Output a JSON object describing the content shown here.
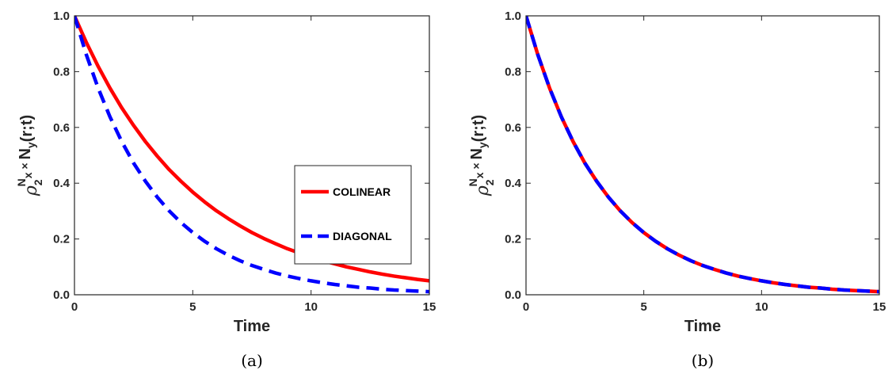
{
  "colors": {
    "colinear": "#ff0000",
    "diagonal": "#0000ff"
  },
  "chart_data": [
    {
      "type": "line",
      "caption": "(a)",
      "xlabel": "Time",
      "ylabel": {
        "main": "ρ",
        "sub": "2",
        "sup": "N",
        "sub2": "x",
        "times": "×",
        "rest": "N",
        "rest_sub": "y",
        "tail": "(r;t)"
      },
      "xlim": [
        0,
        15
      ],
      "ylim": [
        0,
        1
      ],
      "xticks": [
        "0",
        "5",
        "10",
        "15"
      ],
      "yticks": [
        "0.0",
        "0.2",
        "0.4",
        "0.6",
        "0.8",
        "1.0"
      ],
      "legend": {
        "position": "center-right"
      },
      "series": [
        {
          "name": "COLINEAR",
          "style": "solid",
          "color": "#ff0000",
          "x": [
            0,
            0.5,
            1,
            1.5,
            2,
            2.5,
            3,
            3.5,
            4,
            4.5,
            5,
            5.5,
            6,
            6.5,
            7,
            7.5,
            8,
            8.5,
            9,
            9.5,
            10,
            10.5,
            11,
            11.5,
            12,
            12.5,
            13,
            13.5,
            14,
            14.5,
            15
          ],
          "y": [
            1.0,
            0.905,
            0.819,
            0.741,
            0.67,
            0.607,
            0.549,
            0.497,
            0.449,
            0.407,
            0.368,
            0.333,
            0.301,
            0.273,
            0.247,
            0.223,
            0.202,
            0.183,
            0.165,
            0.15,
            0.135,
            0.122,
            0.111,
            0.1,
            0.091,
            0.082,
            0.074,
            0.067,
            0.061,
            0.055,
            0.05
          ]
        },
        {
          "name": "DIAGONAL",
          "style": "dashed",
          "color": "#0000ff",
          "x": [
            0,
            0.5,
            1,
            1.5,
            2,
            2.5,
            3,
            3.5,
            4,
            4.5,
            5,
            5.5,
            6,
            6.5,
            7,
            7.5,
            8,
            8.5,
            9,
            9.5,
            10,
            10.5,
            11,
            11.5,
            12,
            12.5,
            13,
            13.5,
            14,
            14.5,
            15
          ],
          "y": [
            1.0,
            0.861,
            0.741,
            0.638,
            0.549,
            0.472,
            0.407,
            0.35,
            0.301,
            0.259,
            0.223,
            0.192,
            0.165,
            0.142,
            0.122,
            0.105,
            0.091,
            0.078,
            0.067,
            0.058,
            0.05,
            0.043,
            0.037,
            0.032,
            0.027,
            0.024,
            0.02,
            0.017,
            0.015,
            0.013,
            0.011
          ]
        }
      ]
    },
    {
      "type": "line",
      "caption": "(b)",
      "xlabel": "Time",
      "ylabel": {
        "main": "ρ",
        "sub": "2",
        "sup": "N",
        "sub2": "x",
        "times": "×",
        "rest": "N",
        "rest_sub": "y",
        "tail": "(r;t)"
      },
      "xlim": [
        0,
        15
      ],
      "ylim": [
        0,
        1
      ],
      "xticks": [
        "0",
        "5",
        "10",
        "15"
      ],
      "yticks": [
        "0.0",
        "0.2",
        "0.4",
        "0.6",
        "0.8",
        "1.0"
      ],
      "series": [
        {
          "style": "solid",
          "color": "#ff0000",
          "x": [
            0,
            0.5,
            1,
            1.5,
            2,
            2.5,
            3,
            3.5,
            4,
            4.5,
            5,
            5.5,
            6,
            6.5,
            7,
            7.5,
            8,
            8.5,
            9,
            9.5,
            10,
            10.5,
            11,
            11.5,
            12,
            12.5,
            13,
            13.5,
            14,
            14.5,
            15
          ],
          "y": [
            1.0,
            0.861,
            0.741,
            0.638,
            0.549,
            0.472,
            0.407,
            0.35,
            0.301,
            0.259,
            0.223,
            0.192,
            0.165,
            0.142,
            0.122,
            0.105,
            0.091,
            0.078,
            0.067,
            0.058,
            0.05,
            0.043,
            0.037,
            0.032,
            0.027,
            0.024,
            0.02,
            0.017,
            0.015,
            0.013,
            0.011
          ]
        },
        {
          "style": "dashed",
          "color": "#0000ff",
          "x": [
            0,
            0.5,
            1,
            1.5,
            2,
            2.5,
            3,
            3.5,
            4,
            4.5,
            5,
            5.5,
            6,
            6.5,
            7,
            7.5,
            8,
            8.5,
            9,
            9.5,
            10,
            10.5,
            11,
            11.5,
            12,
            12.5,
            13,
            13.5,
            14,
            14.5,
            15
          ],
          "y": [
            1.0,
            0.861,
            0.741,
            0.638,
            0.549,
            0.472,
            0.407,
            0.35,
            0.301,
            0.259,
            0.223,
            0.192,
            0.165,
            0.142,
            0.122,
            0.105,
            0.091,
            0.078,
            0.067,
            0.058,
            0.05,
            0.043,
            0.037,
            0.032,
            0.027,
            0.024,
            0.02,
            0.017,
            0.015,
            0.013,
            0.011
          ]
        }
      ]
    }
  ]
}
